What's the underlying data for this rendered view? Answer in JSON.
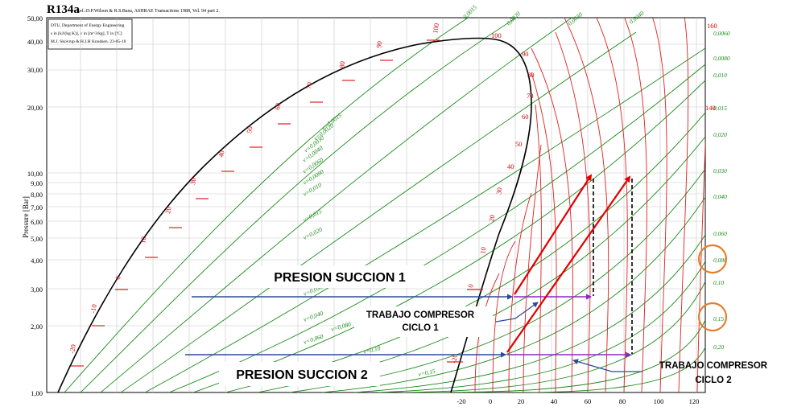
{
  "chart": {
    "title": "R134a",
    "reference": "Ref.:D.P.Wilson & R.S.Basu, ASHRAE Transactions 1988, Vol. 94 part 2.",
    "info_lines": [
      "DTU, Department of Energy Engineering",
      "s in [kJ/(kg K)], v in [m^3/kg], T in [ºC]",
      "M.J. Skovrup & H.J.H Knudsen. 23-05-10"
    ],
    "y_axis_label": "Pressure [Bar]",
    "y_ticks": [
      "50,00",
      "40,00",
      "30,00",
      "20,00",
      "10,00",
      "9,00",
      "8,00",
      "7,00",
      "6,00",
      "5,00",
      "4,00",
      "3,00",
      "2,00",
      "1,00"
    ],
    "x_ticks": [
      "-20",
      "0",
      "20",
      "40",
      "60",
      "80",
      "100",
      "120"
    ],
    "sat_temp_labels": [
      "-20",
      "-10",
      "0",
      "10",
      "20",
      "30",
      "40",
      "50",
      "60",
      "70",
      "80",
      "90",
      "100"
    ],
    "vapor_temp_labels": [
      "100",
      "90",
      "80",
      "70",
      "60",
      "50",
      "40",
      "30",
      "20",
      "10",
      "0",
      "-20"
    ],
    "isochore_labels_left": [
      "v=0,0015",
      "v=0,0020",
      "v=0,0030",
      "v=0,0040",
      "v=0,0060",
      "v=0,0080",
      "v=0,010",
      "v=0,015",
      "v=0,020",
      "v=0,030",
      "v=0,040",
      "v=0,060",
      "v=0,080",
      "v=0,10",
      "v=0,15"
    ],
    "isochore_labels_top": [
      "0,0015",
      "0,0020",
      "0,0030",
      "0,0040"
    ],
    "isochore_labels_right": [
      "0,0060",
      "0,0080",
      "0,010",
      "0,015",
      "0,020",
      "0,030",
      "0,040",
      "0,060",
      "0,080",
      "0,10",
      "0,15",
      "0,20"
    ],
    "right_red_labels": [
      "160",
      "140"
    ]
  },
  "annotations": {
    "presion_succion_1": "PRESION SUCCION 1",
    "presion_succion_2": "PRESION SUCCION 2",
    "trabajo_ciclo_1_line1": "TRABAJO COMPRESOR",
    "trabajo_ciclo_1_line2": "CICLO 1",
    "trabajo_ciclo_2_line1": "TRABAJO COMPRESOR",
    "trabajo_ciclo_2_line2": "CICLO 2"
  },
  "colors": {
    "isotherm": "#e02020",
    "isochore": "#1a8a1a",
    "saturation": "#000000",
    "suction_line": "#2a4a9a",
    "work_line": "#8a2ac0",
    "compression_arrow": "#e00000",
    "highlight_circle": "#e08030"
  }
}
